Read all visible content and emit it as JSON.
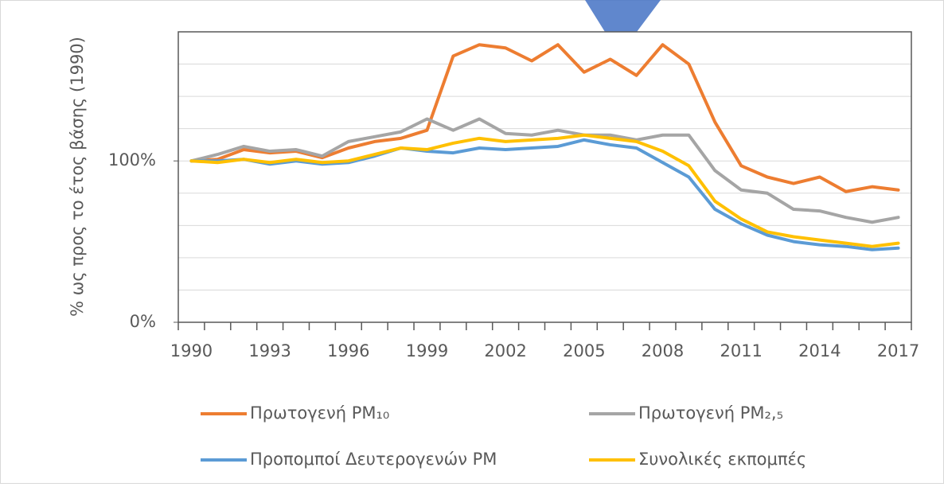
{
  "chart_data": {
    "type": "line",
    "y_label": "% ως προς το έτος βάσης (1990)",
    "categories": [
      "1990",
      null,
      null,
      "1993",
      null,
      null,
      "1996",
      null,
      null,
      "1999",
      null,
      null,
      "2002",
      null,
      null,
      "2005",
      null,
      null,
      "2008",
      null,
      null,
      "2011",
      null,
      null,
      "2014",
      null,
      null,
      "2017"
    ],
    "ylim": [
      0,
      180
    ],
    "yticks": [
      {
        "value": 0,
        "label": "0%"
      },
      {
        "value": 100,
        "label": "100%"
      }
    ],
    "ygrid": [
      20,
      40,
      60,
      80,
      100,
      120,
      140,
      160,
      180
    ],
    "grid": true,
    "legend": "bottom",
    "series": [
      {
        "name": "Πρωτογενή PM₁₀",
        "color": "#ed7d31",
        "values": [
          100,
          101,
          107,
          105,
          106,
          102,
          108,
          112,
          114,
          119,
          165,
          172,
          170,
          162,
          172,
          155,
          163,
          153,
          172,
          160,
          124,
          97,
          90,
          86,
          90,
          81,
          84,
          82
        ]
      },
      {
        "name": "Πρωτογενή PM₂,₅",
        "color": "#a5a5a5",
        "values": [
          100,
          104,
          109,
          106,
          107,
          103,
          112,
          115,
          118,
          126,
          119,
          126,
          117,
          116,
          119,
          116,
          116,
          113,
          116,
          116,
          94,
          82,
          80,
          70,
          69,
          65,
          62,
          65
        ]
      },
      {
        "name": "Προπομποί Δευτερογενών PM",
        "color": "#5b9bd5",
        "values": [
          100,
          100,
          101,
          98,
          100,
          98,
          99,
          103,
          108,
          106,
          105,
          108,
          107,
          108,
          109,
          113,
          110,
          108,
          99,
          90,
          70,
          61,
          54,
          50,
          48,
          47,
          45,
          46
        ]
      },
      {
        "name": "Συνολικές εκπομπές",
        "color": "#ffc000",
        "values": [
          100,
          99,
          101,
          99,
          101,
          99,
          100,
          104,
          108,
          107,
          111,
          114,
          112,
          113,
          114,
          116,
          114,
          112,
          106,
          97,
          75,
          64,
          56,
          53,
          51,
          49,
          47,
          49
        ]
      }
    ]
  }
}
